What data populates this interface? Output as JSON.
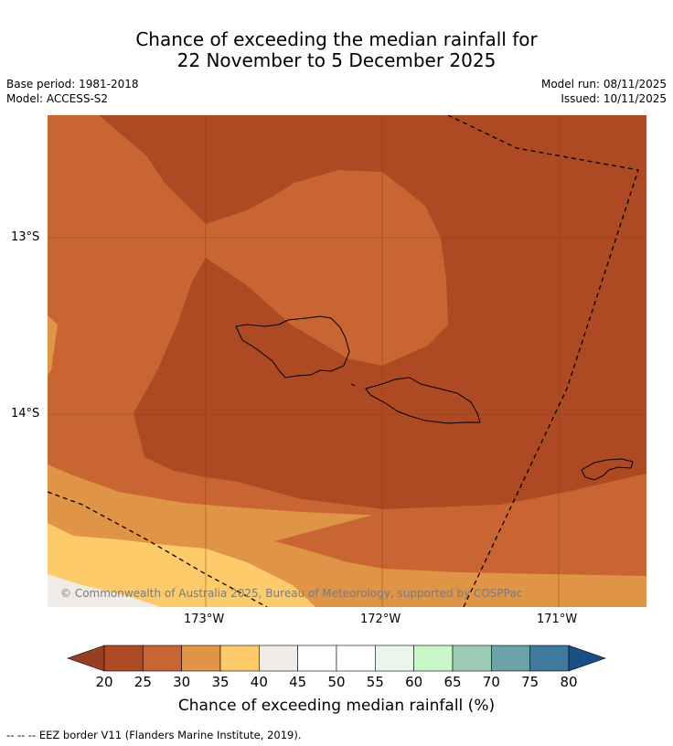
{
  "title": {
    "line1": "Chance of exceeding the median rainfall for",
    "line2": "22 November to 5 December 2025"
  },
  "meta": {
    "base_period": "Base period: 1981-2018",
    "model": "Model: ACCESS-S2",
    "model_run": "Model run: 08/11/2025",
    "issued": "Issued: 10/11/2025"
  },
  "map": {
    "copyright": "© Commonwealth of Australia 2025, Bureau of Meteorology, supported by COSPPac",
    "lat_ticks": [
      "13°S",
      "14°S"
    ],
    "lon_ticks": [
      "173°W",
      "172°W",
      "171°W"
    ],
    "colors": {
      "c20_25": "#ad4a24",
      "c25_30": "#c96533",
      "c30_35": "#e09445",
      "c35_40": "#fdcb6a",
      "c40_45": "#f0ebe7",
      "grid": "#8b4513",
      "coast": "#000000",
      "eez": "#000000"
    }
  },
  "colorbar": {
    "labels": [
      "20",
      "25",
      "30",
      "35",
      "40",
      "45",
      "50",
      "55",
      "60",
      "65",
      "70",
      "75",
      "80"
    ],
    "colors": [
      "#ad4a24",
      "#c96533",
      "#e09445",
      "#fdcb6a",
      "#f0ebe7",
      "#ffffff",
      "#ffffff",
      "#eaf6ea",
      "#c8f7c8",
      "#9ccdb4",
      "#6aa2a6",
      "#3f7a9c"
    ],
    "under_color": "#963f22",
    "over_color": "#1a4f86",
    "title": "Chance of exceeding median rainfall (%)"
  },
  "footer": "--  --  -- EEZ border V11 (Flanders Marine Institute, 2019)."
}
